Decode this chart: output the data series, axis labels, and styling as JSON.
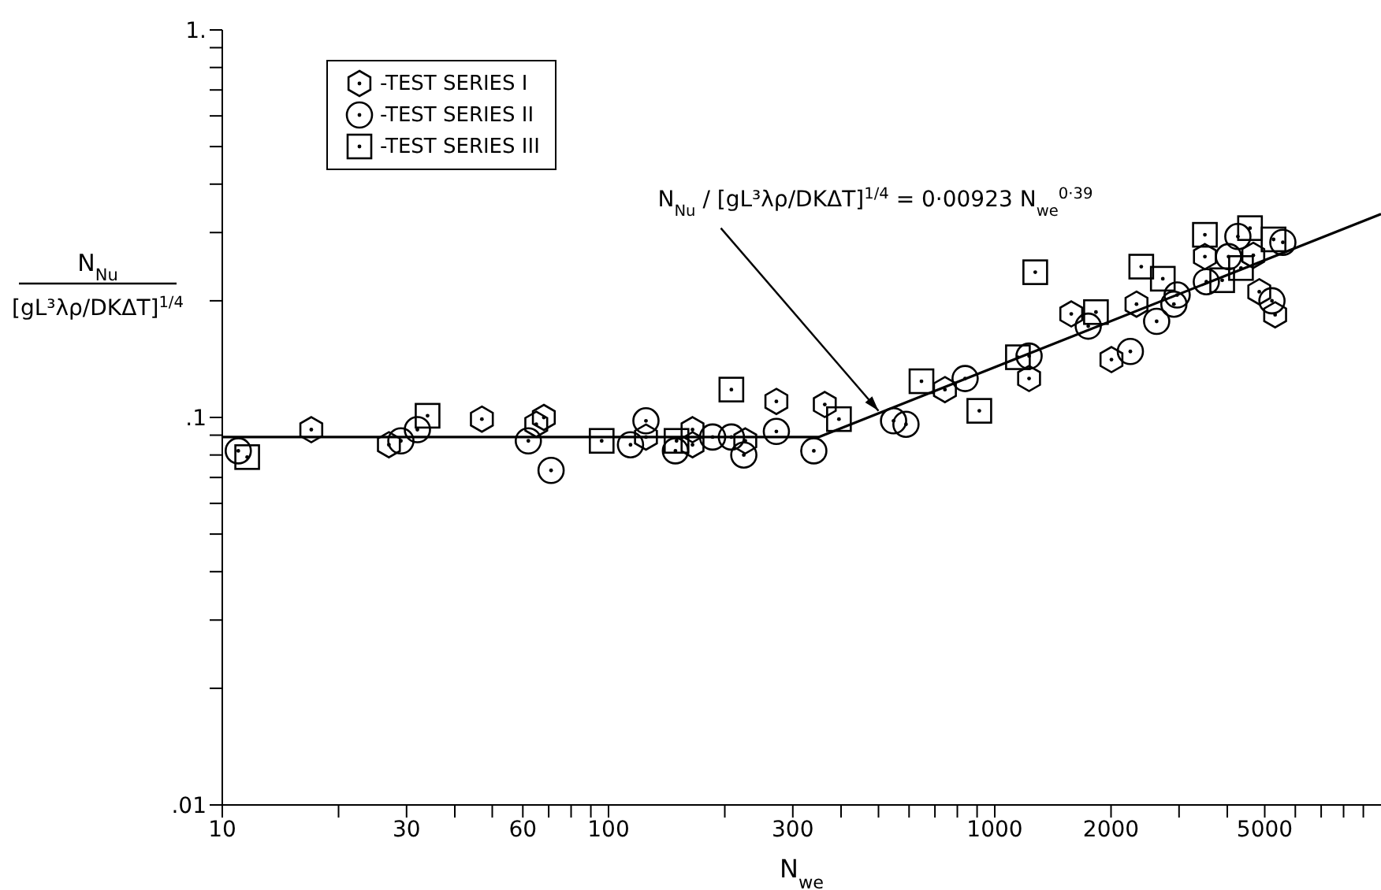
{
  "chart_data": {
    "type": "scatter",
    "xlabel": "N$_{we}$",
    "ylabel": "N$_{Nu}$\n[gL³λρ/DKΔT]$^{1/4}$",
    "log": "xy",
    "grid": false,
    "legend": "top left",
    "xlim": [
      10,
      10000
    ],
    "ylim": [
      0.01,
      1
    ],
    "xticks": [
      10,
      {
        "value": 20,
        "label": null
      },
      30,
      {
        "value": 40,
        "label": null
      },
      {
        "value": 50,
        "label": null
      },
      60,
      {
        "value": 70,
        "label": null
      },
      {
        "value": 80,
        "label": null
      },
      {
        "value": 90,
        "label": null
      },
      100,
      {
        "value": 200,
        "label": null
      },
      300,
      {
        "value": 400,
        "label": null
      },
      {
        "value": 500,
        "label": null
      },
      {
        "value": 600,
        "label": null
      },
      {
        "value": 700,
        "label": null
      },
      {
        "value": 800,
        "label": null
      },
      {
        "value": 900,
        "label": null
      },
      1000,
      2000,
      {
        "value": 3000,
        "label": null
      },
      {
        "value": 4000,
        "label": null
      },
      5000,
      {
        "value": 6000,
        "label": null
      },
      {
        "value": 7000,
        "label": null
      },
      {
        "value": 8000,
        "label": null
      },
      {
        "value": 9000,
        "label": null
      }
    ],
    "yticks": [
      {
        "value": 0.01,
        "label": ".01"
      },
      {
        "value": 0.02,
        "label": null
      },
      {
        "value": 0.03,
        "label": null
      },
      {
        "value": 0.04,
        "label": null
      },
      {
        "value": 0.05,
        "label": null
      },
      {
        "value": 0.06,
        "label": null
      },
      {
        "value": 0.07,
        "label": null
      },
      {
        "value": 0.08,
        "label": null
      },
      {
        "value": 0.09,
        "label": null
      },
      {
        "value": 0.1,
        "label": ".1"
      },
      {
        "value": 0.2,
        "label": null
      },
      {
        "value": 0.3,
        "label": null
      },
      {
        "value": 0.4,
        "label": null
      },
      {
        "value": 0.5,
        "label": null
      },
      {
        "value": 0.6,
        "label": null
      },
      {
        "value": 0.7,
        "label": null
      },
      {
        "value": 0.8,
        "label": null
      },
      {
        "value": 0.9,
        "label": null
      },
      {
        "value": 1,
        "label": "1."
      }
    ],
    "annotations": [
      {
        "text": "N$_{Nu}$ / [gL³λρ/DKΔT]$^{1/4}$ = 0·00923 N$_{we}$$^{0·39}$",
        "x": 500,
        "y": 0.104
      }
    ],
    "series": [
      {
        "name": "-TEST SERIES I",
        "color": "#000000",
        "x": [
          17,
          27,
          47,
          65,
          68,
          125,
          165,
          165,
          226,
          272,
          363,
          743,
          1227,
          1578,
          2005,
          2328,
          3500,
          4670,
          4840,
          5320
        ],
        "values": [
          0.093,
          0.085,
          0.099,
          0.096,
          0.1,
          0.089,
          0.093,
          0.085,
          0.087,
          0.11,
          0.108,
          0.118,
          0.126,
          0.185,
          0.141,
          0.196,
          0.26,
          0.262,
          0.211,
          0.184
        ]
      },
      {
        "name": "-TEST SERIES II",
        "marker": "circle",
        "color": "#000000",
        "x": [
          11,
          29,
          32,
          62,
          71,
          114,
          125,
          149,
          186,
          208,
          224,
          272,
          340,
          547,
          589,
          838,
          1227,
          1746,
          2244,
          2625,
          2909,
          2966,
          3530,
          4030,
          4260,
          5570,
          5220
        ],
        "values": [
          0.082,
          0.087,
          0.093,
          0.087,
          0.073,
          0.085,
          0.098,
          0.082,
          0.089,
          0.089,
          0.08,
          0.092,
          0.082,
          0.098,
          0.096,
          0.126,
          0.144,
          0.172,
          0.148,
          0.177,
          0.196,
          0.207,
          0.224,
          0.26,
          0.293,
          0.283,
          0.2
        ]
      },
      {
        "name": "-TEST SERIES III",
        "marker": "square",
        "color": "#000000",
        "x": [
          11.6,
          34,
          96,
          150,
          208,
          395,
          646,
          912,
          1148,
          1273,
          1828,
          2395,
          2723,
          3500,
          3880,
          4340,
          4580,
          5270
        ],
        "values": [
          0.079,
          0.101,
          0.087,
          0.087,
          0.118,
          0.099,
          0.124,
          0.104,
          0.143,
          0.237,
          0.187,
          0.245,
          0.228,
          0.296,
          0.226,
          0.243,
          0.308,
          0.288
        ]
      },
      {
        "type": "line",
        "line_style": "solid",
        "marker": "none",
        "color": "#000000",
        "x": [
          10,
          350,
          10000
        ],
        "values": [
          0.089,
          0.089,
          0.335
        ]
      }
    ]
  }
}
